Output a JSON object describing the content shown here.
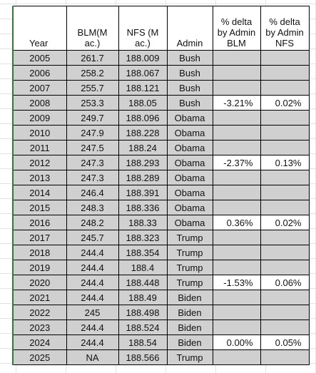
{
  "table": {
    "header": [
      "Year",
      "BLM(M ac.)",
      "NFS (M ac.)",
      "Admin",
      "% delta by Admin BLM",
      "% delta by Admin NFS"
    ],
    "rows": [
      [
        "2005",
        "261.7",
        "188.009",
        "Bush",
        null,
        null
      ],
      [
        "2006",
        "258.2",
        "188.067",
        "Bush",
        null,
        null
      ],
      [
        "2007",
        "255.7",
        "188.121",
        "Bush",
        null,
        null
      ],
      [
        "2008",
        "253.3",
        "188.05",
        "Bush",
        "-3.21%",
        "0.02%"
      ],
      [
        "2009",
        "249.7",
        "188.096",
        "Obama",
        null,
        null
      ],
      [
        "2010",
        "247.9",
        "188.228",
        "Obama",
        null,
        null
      ],
      [
        "2011",
        "247.5",
        "188.24",
        "Obama",
        null,
        null
      ],
      [
        "2012",
        "247.3",
        "188.293",
        "Obama",
        "-2.37%",
        "0.13%"
      ],
      [
        "2013",
        "247.3",
        "188.289",
        "Obama",
        null,
        null
      ],
      [
        "2014",
        "246.4",
        "188.391",
        "Obama",
        null,
        null
      ],
      [
        "2015",
        "248.3",
        "188.336",
        "Obama",
        null,
        null
      ],
      [
        "2016",
        "248.2",
        "188.33",
        "Obama",
        "0.36%",
        "0.02%"
      ],
      [
        "2017",
        "245.7",
        "188.323",
        "Trump",
        null,
        null
      ],
      [
        "2018",
        "244.4",
        "188.354",
        "Trump",
        null,
        null
      ],
      [
        "2019",
        "244.4",
        "188.4",
        "Trump",
        null,
        null
      ],
      [
        "2020",
        "244.4",
        "188.448",
        "Trump",
        "-1.53%",
        "0.06%"
      ],
      [
        "2021",
        "244.4",
        "188.49",
        "Biden",
        null,
        null
      ],
      [
        "2022",
        "245",
        "188.498",
        "Biden",
        null,
        null
      ],
      [
        "2023",
        "244.4",
        "188.524",
        "Biden",
        null,
        null
      ],
      [
        "2024",
        "244.4",
        "188.54",
        "Biden",
        "0.00%",
        "0.05%"
      ],
      [
        "2025",
        "NA",
        "188.566",
        "Trump",
        null,
        null
      ]
    ]
  }
}
